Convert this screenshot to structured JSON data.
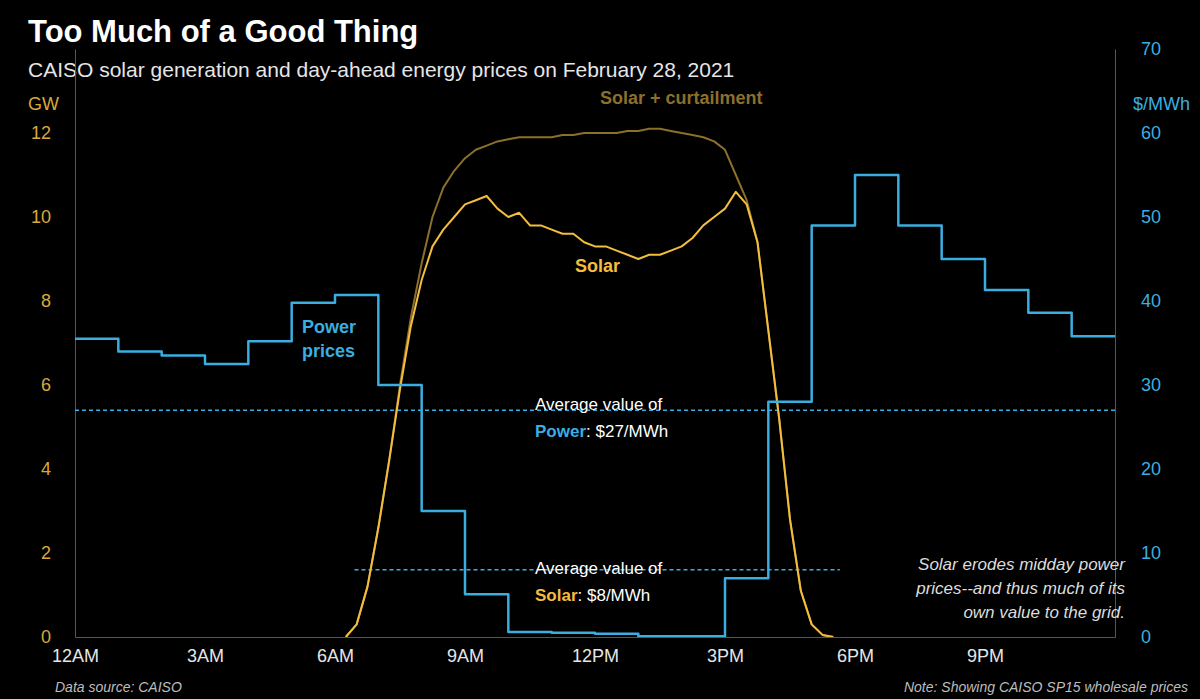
{
  "chart_data": {
    "type": "line",
    "title": "Too Much of a Good Thing",
    "subtitle": "CAISO solar generation and day-ahead energy prices on February 28, 2021",
    "y_label": "GW",
    "y2_label": "$/MWh",
    "xlim": [
      0,
      24
    ],
    "xticks": [
      {
        "value": 0,
        "label": "12AM"
      },
      {
        "value": 3,
        "label": "3AM"
      },
      {
        "value": 6,
        "label": "6AM"
      },
      {
        "value": 9,
        "label": "9AM"
      },
      {
        "value": 12,
        "label": "12PM"
      },
      {
        "value": 15,
        "label": "3PM"
      },
      {
        "value": 18,
        "label": "6PM"
      },
      {
        "value": 21,
        "label": "9PM"
      }
    ],
    "ylim": [
      0,
      14
    ],
    "yticks": [
      0,
      2,
      4,
      6,
      8,
      10,
      12
    ],
    "y2lim": [
      0,
      70
    ],
    "y2ticks": [
      0,
      10,
      20,
      30,
      40,
      50,
      60,
      70
    ],
    "grid": false,
    "series": [
      {
        "name": "Solar + curtailment",
        "color": "#8c6f2c",
        "line_style": "solid",
        "x": [
          6.25,
          6.5,
          6.75,
          7,
          7.25,
          7.5,
          7.75,
          8,
          8.25,
          8.5,
          8.75,
          9,
          9.25,
          9.5,
          9.75,
          10,
          10.25,
          10.5,
          10.75,
          11,
          11.25,
          11.5,
          11.75,
          12,
          12.25,
          12.5,
          12.75,
          13,
          13.25,
          13.5,
          13.75,
          14,
          14.25,
          14.5,
          14.75,
          15,
          15.25,
          15.5,
          15.75,
          16,
          16.25,
          16.5,
          16.75,
          17,
          17.25,
          17.5
        ],
        "values": [
          0,
          0.3,
          1.2,
          2.6,
          4.2,
          6.0,
          7.6,
          8.9,
          10.0,
          10.7,
          11.1,
          11.4,
          11.6,
          11.7,
          11.8,
          11.85,
          11.9,
          11.9,
          11.9,
          11.9,
          11.95,
          11.95,
          12.0,
          12.0,
          12.0,
          12.0,
          12.05,
          12.05,
          12.1,
          12.1,
          12.05,
          12.0,
          11.95,
          11.9,
          11.8,
          11.6,
          11.0,
          10.4,
          9.4,
          7.3,
          5.2,
          2.8,
          1.1,
          0.3,
          0.05,
          0
        ]
      },
      {
        "name": "Solar",
        "color": "#f2be3c",
        "line_style": "solid",
        "x": [
          6.25,
          6.5,
          6.75,
          7,
          7.25,
          7.5,
          7.75,
          8,
          8.25,
          8.5,
          8.75,
          9,
          9.25,
          9.5,
          9.75,
          10,
          10.25,
          10.5,
          10.75,
          11,
          11.25,
          11.5,
          11.75,
          12,
          12.25,
          12.5,
          12.75,
          13,
          13.25,
          13.5,
          13.75,
          14,
          14.25,
          14.5,
          14.75,
          15,
          15.25,
          15.5,
          15.75,
          16,
          16.25,
          16.5,
          16.75,
          17,
          17.25,
          17.5
        ],
        "values": [
          0,
          0.3,
          1.2,
          2.6,
          4.2,
          5.9,
          7.4,
          8.5,
          9.3,
          9.7,
          10.0,
          10.3,
          10.4,
          10.5,
          10.2,
          10.0,
          10.1,
          9.8,
          9.8,
          9.7,
          9.6,
          9.6,
          9.4,
          9.3,
          9.3,
          9.2,
          9.1,
          9.0,
          9.1,
          9.1,
          9.2,
          9.3,
          9.5,
          9.8,
          10.0,
          10.2,
          10.6,
          10.3,
          9.4,
          7.3,
          5.2,
          2.8,
          1.1,
          0.3,
          0.05,
          0
        ]
      },
      {
        "name": "Power prices",
        "color": "#3aaee0",
        "line_style": "step",
        "axis": "y2",
        "x": [
          0,
          1,
          2,
          3,
          4,
          5,
          6,
          7,
          8,
          9,
          10,
          11,
          12,
          13,
          14,
          15,
          16,
          17,
          18,
          19,
          20,
          21,
          22,
          23
        ],
        "values": [
          35.5,
          34,
          33.5,
          32.5,
          35.2,
          39.8,
          40.7,
          30,
          15,
          5.1,
          0.6,
          0.5,
          0.4,
          0.1,
          0.1,
          7,
          28,
          49,
          55,
          49,
          45,
          41.3,
          38.6,
          35.8
        ]
      }
    ],
    "annotations": [
      {
        "type": "hline",
        "axis": "y2",
        "value": 27,
        "color": "#3aaee0",
        "lead": "Average value of",
        "name": "Power",
        "text": ": $27/MWh"
      },
      {
        "type": "hline",
        "axis": "y2",
        "value": 8,
        "color": "#f2be3c",
        "x_range": [
          6.45,
          17.65
        ],
        "lead": "Average value of",
        "name": "Solar",
        "text": ": $8/MWh"
      },
      {
        "type": "note",
        "lines": [
          "Solar erodes midday power",
          "prices--and thus much of its",
          "own value to the grid."
        ]
      }
    ],
    "source": "Data source: CAISO",
    "footnote": "Note: Showing CAISO SP15 wholesale prices"
  }
}
